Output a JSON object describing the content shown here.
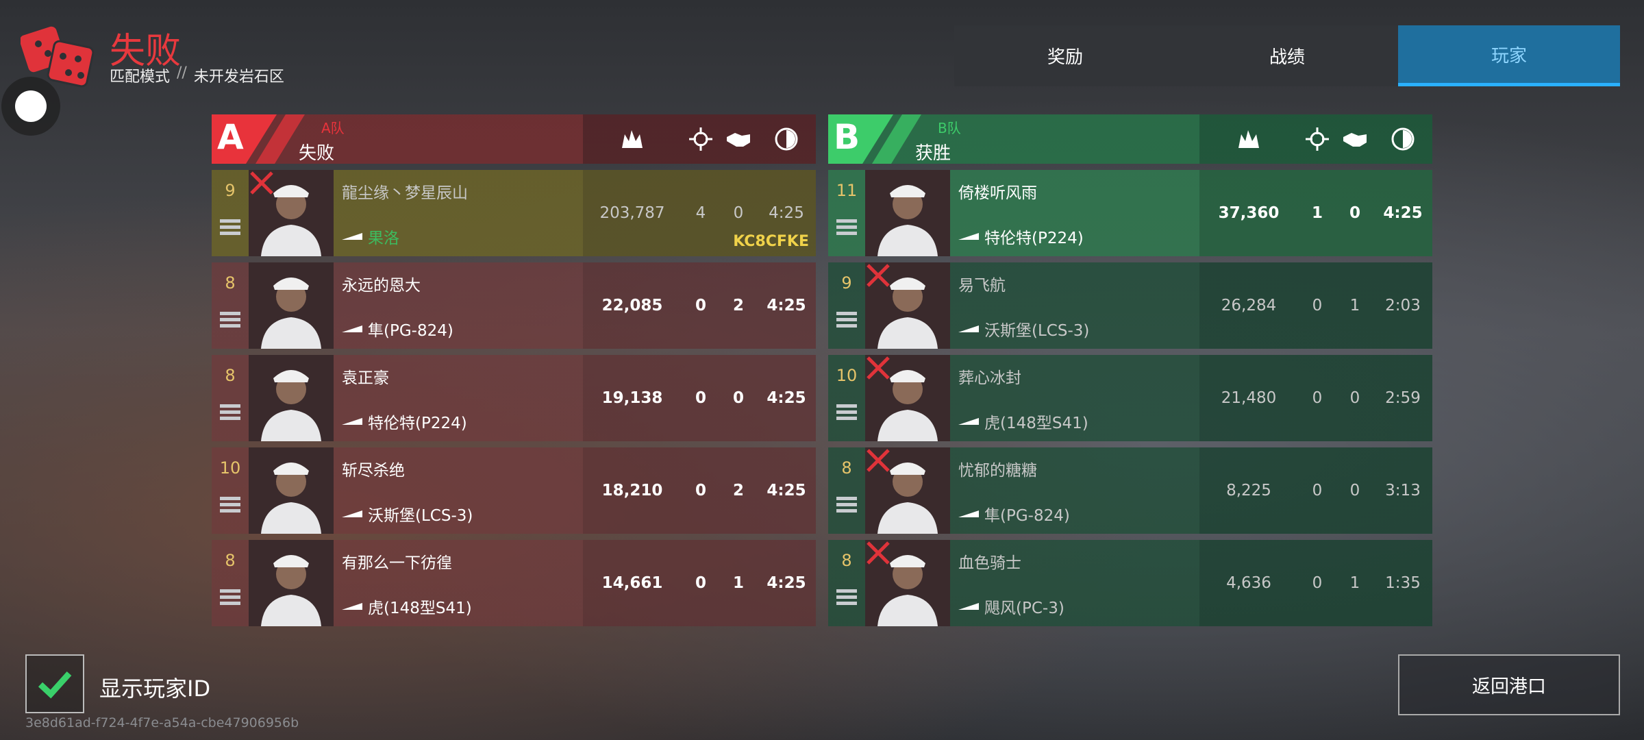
{
  "header": {
    "title": "失败",
    "mode": "匹配模式",
    "separator": "//",
    "map": "未开发岩石区"
  },
  "tabs": [
    "奖励",
    "战绩",
    "玩家"
  ],
  "teams": [
    {
      "letter": "A",
      "name": "A队",
      "result": "失败",
      "players": [
        {
          "level": 9,
          "name": "龍尘缘丶梦星辰山",
          "ship": "果洛",
          "score": "203,787",
          "kills": 4,
          "assists": 0,
          "time": "4:25",
          "player_id": "KC8CFKE",
          "eliminated": true
        },
        {
          "level": 8,
          "name": "永远的恩大",
          "ship": "隼(PG-824)",
          "score": "22,085",
          "kills": 0,
          "assists": 2,
          "time": "4:25",
          "eliminated": false
        },
        {
          "level": 8,
          "name": "袁正豪",
          "ship": "特伦特(P224)",
          "score": "19,138",
          "kills": 0,
          "assists": 0,
          "time": "4:25",
          "eliminated": false
        },
        {
          "level": 10,
          "name": "斩尽杀绝",
          "ship": "沃斯堡(LCS-3)",
          "score": "18,210",
          "kills": 0,
          "assists": 2,
          "time": "4:25",
          "eliminated": false
        },
        {
          "level": 8,
          "name": "有那么一下彷徨",
          "ship": "虎(148型S41)",
          "score": "14,661",
          "kills": 0,
          "assists": 1,
          "time": "4:25",
          "eliminated": false
        }
      ]
    },
    {
      "letter": "B",
      "name": "B队",
      "result": "获胜",
      "players": [
        {
          "level": 11,
          "name": "倚楼听风雨",
          "ship": "特伦特(P224)",
          "score": "37,360",
          "kills": 1,
          "assists": 0,
          "time": "4:25",
          "eliminated": false
        },
        {
          "level": 9,
          "name": "易飞航",
          "ship": "沃斯堡(LCS-3)",
          "score": "26,284",
          "kills": 0,
          "assists": 1,
          "time": "2:03",
          "eliminated": true
        },
        {
          "level": 10,
          "name": "葬心冰封",
          "ship": "虎(148型S41)",
          "score": "21,480",
          "kills": 0,
          "assists": 0,
          "time": "2:59",
          "eliminated": true
        },
        {
          "level": 8,
          "name": "忧郁的糖糖",
          "ship": "隼(PG-824)",
          "score": "8,225",
          "kills": 0,
          "assists": 0,
          "time": "3:13",
          "eliminated": true
        },
        {
          "level": 8,
          "name": "血色骑士",
          "ship": "飓风(PC-3)",
          "score": "4,636",
          "kills": 0,
          "assists": 1,
          "time": "1:35",
          "eliminated": true
        }
      ]
    }
  ],
  "footer": {
    "show_id_label": "显示玩家ID",
    "session_id": "3e8d61ad-f724-4f7e-a54a-cbe47906956b",
    "return_button": "返回港口"
  }
}
